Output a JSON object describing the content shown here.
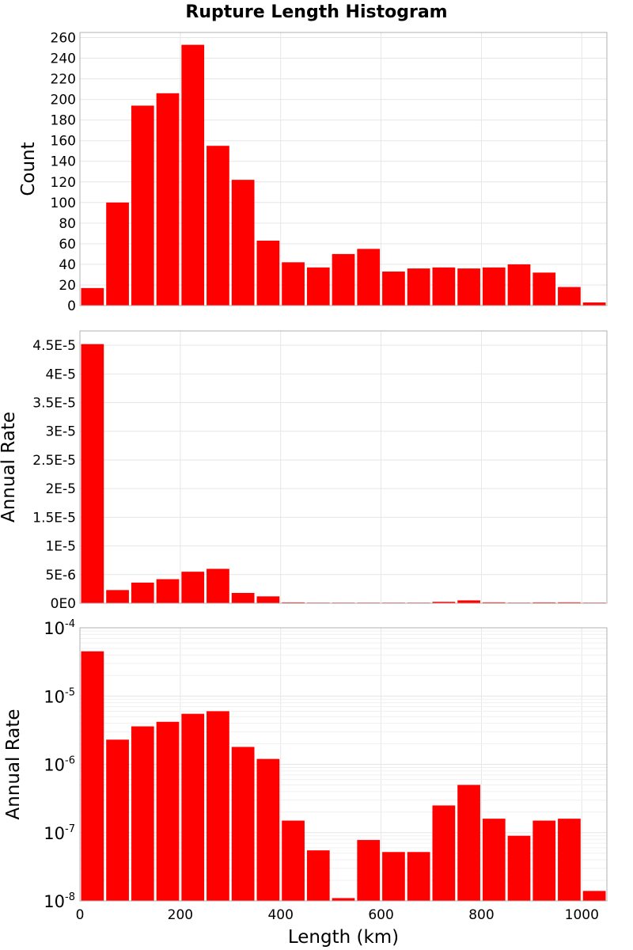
{
  "chart_data": {
    "title": "Rupture Length Histogram",
    "type": "bar",
    "xlabel": "Length (km)",
    "xlim": [
      0,
      1050
    ],
    "x_ticks": [
      "0",
      "200",
      "400",
      "600",
      "800",
      "1000"
    ],
    "bin_edges": [
      0,
      50,
      100,
      150,
      200,
      250,
      300,
      350,
      400,
      450,
      500,
      550,
      600,
      650,
      700,
      750,
      800,
      850,
      900,
      950,
      1000,
      1050
    ],
    "bar_color": "#ff0000",
    "grid": true,
    "panels": [
      {
        "ylabel": "Count",
        "scale": "linear",
        "ylim": [
          0,
          265
        ],
        "y_ticks": [
          "0",
          "20",
          "40",
          "60",
          "80",
          "100",
          "120",
          "140",
          "160",
          "180",
          "200",
          "220",
          "240",
          "260"
        ],
        "values": [
          17,
          100,
          194,
          206,
          253,
          155,
          122,
          63,
          42,
          37,
          50,
          55,
          33,
          36,
          37,
          36,
          37,
          40,
          32,
          18,
          3
        ]
      },
      {
        "ylabel": "Annual Rate",
        "scale": "linear",
        "ylim": [
          0,
          4.75e-05
        ],
        "y_ticks": [
          "0E0",
          "5E-6",
          "1E-5",
          "1.5E-5",
          "2E-5",
          "2.5E-5",
          "3E-5",
          "3.5E-5",
          "4E-5",
          "4.5E-5"
        ],
        "values": [
          4.52e-05,
          2.3e-06,
          3.6e-06,
          4.2e-06,
          5.5e-06,
          6e-06,
          1.8e-06,
          1.2e-06,
          1.5e-07,
          5.5e-08,
          1.1e-08,
          7.8e-08,
          5.2e-08,
          5.2e-08,
          2.5e-07,
          5e-07,
          1.6e-07,
          9e-08,
          1.5e-07,
          1.6e-07,
          1.4e-08
        ]
      },
      {
        "ylabel": "Annual Rate",
        "scale": "log",
        "ylim": [
          1e-08,
          0.0001
        ],
        "y_ticks": [
          {
            "base": "10",
            "exp": "-4"
          },
          {
            "base": "10",
            "exp": "-5"
          },
          {
            "base": "10",
            "exp": "-6"
          },
          {
            "base": "10",
            "exp": "-7"
          },
          {
            "base": "10",
            "exp": "-8"
          }
        ],
        "values": [
          4.52e-05,
          2.3e-06,
          3.6e-06,
          4.2e-06,
          5.5e-06,
          6e-06,
          1.8e-06,
          1.2e-06,
          1.5e-07,
          5.5e-08,
          1.1e-08,
          7.8e-08,
          5.2e-08,
          5.2e-08,
          2.5e-07,
          5e-07,
          1.6e-07,
          9e-08,
          1.5e-07,
          1.6e-07,
          1.4e-08
        ]
      }
    ]
  }
}
